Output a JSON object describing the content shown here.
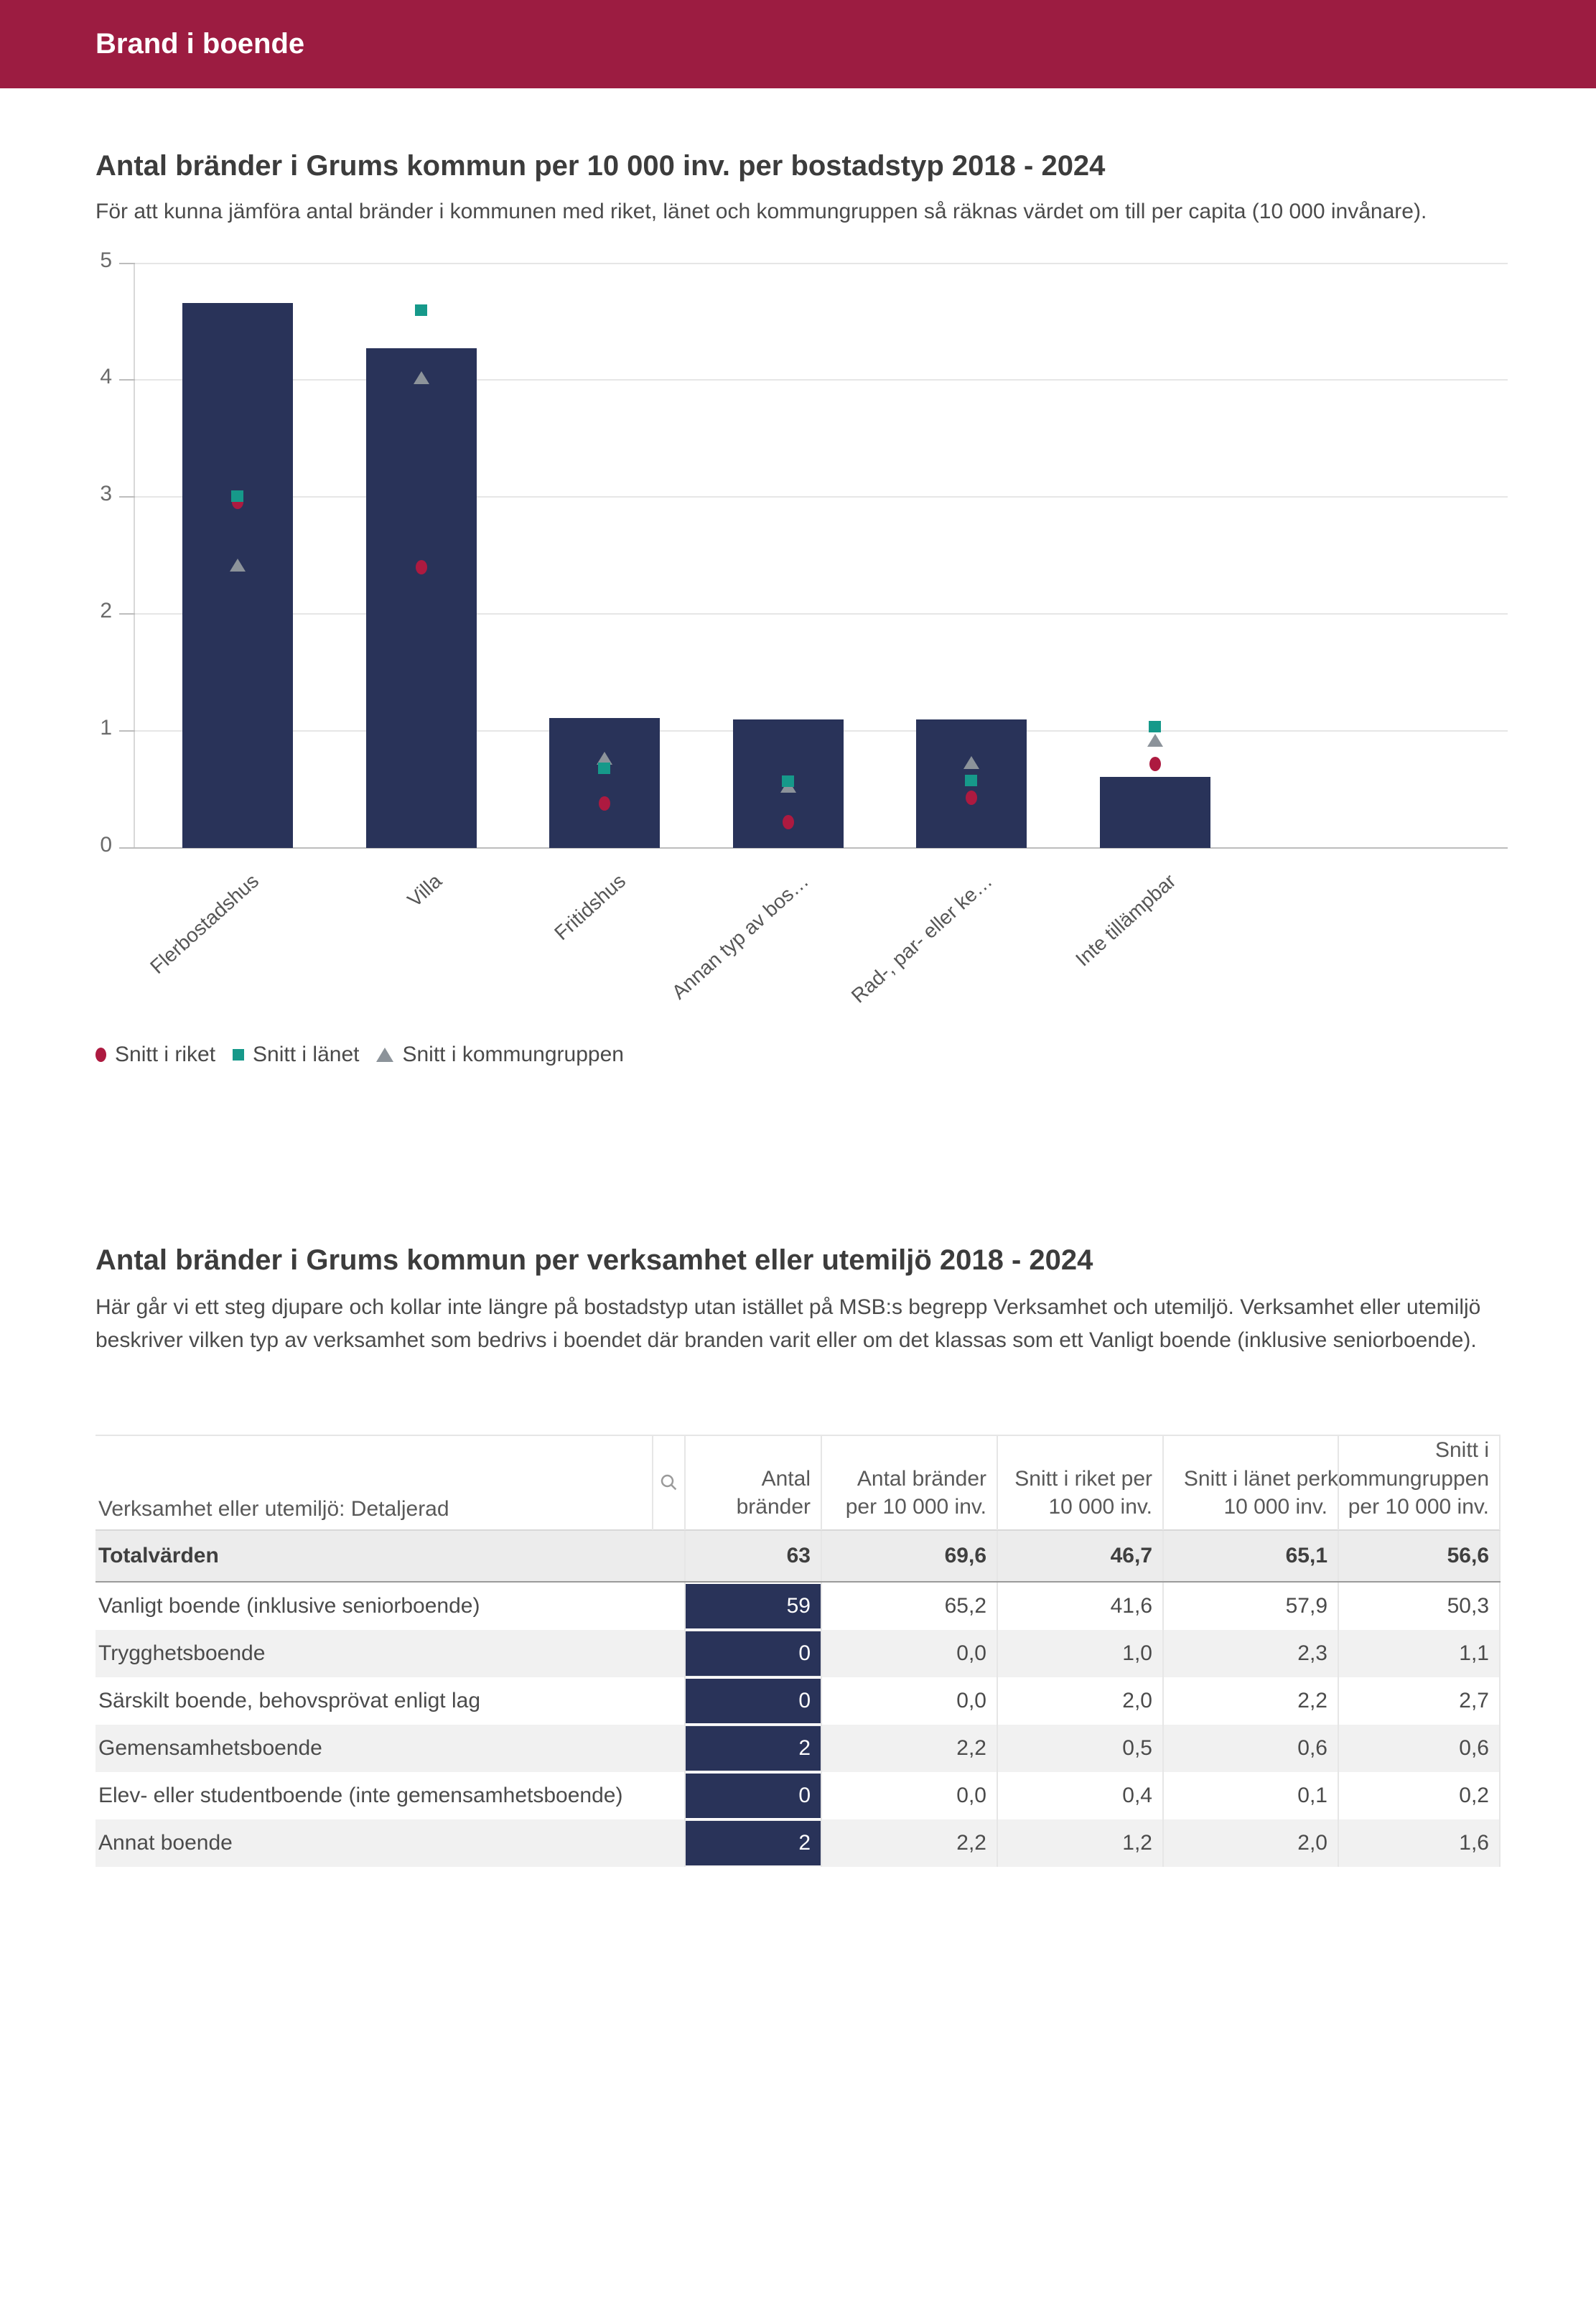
{
  "header": {
    "title": "Brand i boende"
  },
  "section1": {
    "title": "Antal bränder i Grums kommun per 10 000 inv. per bostadstyp 2018 - 2024",
    "subtitle": "För att kunna jämföra antal bränder i kommunen med riket, länet och kommungruppen så räknas värdet om till per capita (10 000 invånare)."
  },
  "chart_data": {
    "type": "bar",
    "title": "Antal bränder i Grums kommun per 10 000 inv. per bostadstyp 2018 - 2024",
    "categories": [
      "Flerbostadshus",
      "Villa",
      "Fritidshus",
      "Annan typ av bos…",
      "Rad-, par- eller ke…",
      "Inte tillämpbar"
    ],
    "bars": {
      "color": "#293359",
      "values": [
        4.66,
        4.27,
        1.11,
        1.1,
        1.1,
        0.61
      ]
    },
    "marker_series": [
      {
        "name": "Snitt i riket",
        "shape": "circle",
        "color": "#AD1A40",
        "values": [
          2.96,
          2.4,
          0.38,
          0.22,
          0.43,
          0.72
        ]
      },
      {
        "name": "Snitt i länet",
        "shape": "square",
        "color": "#16998A",
        "values": [
          3.01,
          4.6,
          0.68,
          0.57,
          0.58,
          1.04
        ]
      },
      {
        "name": "Snitt i kommungruppen",
        "shape": "triangle",
        "color": "#8C939A",
        "values": [
          2.42,
          4.02,
          0.77,
          0.53,
          0.73,
          0.92
        ]
      }
    ],
    "ylim": [
      0,
      5
    ],
    "yticks": [
      0,
      1,
      2,
      3,
      4,
      5
    ],
    "grid": true,
    "legend_position": "bottom-left"
  },
  "section2": {
    "title": "Antal bränder i Grums kommun per verksamhet eller utemiljö 2018 - 2024",
    "body": "Här går vi ett steg djupare och kollar inte längre på bostadstyp utan istället på MSB:s begrepp Verksamhet och utemiljö. Verksamhet eller utemiljö beskriver vilken typ av verksamhet som bedrivs i boendet där branden varit eller om det klassas som ett Vanligt boende (inklusive seniorboende)."
  },
  "table": {
    "search_icon": "magnifier-icon",
    "columns": [
      "Verksamhet eller utemiljö: Detaljerad",
      "Antal bränder",
      "Antal bränder per 10 000 inv.",
      "Snitt i riket per 10 000 inv.",
      "Snitt i länet per 10 000 inv.",
      "Snitt i kommungruppen per 10 000 inv."
    ],
    "total_row": {
      "label": "Totalvärden",
      "values": [
        "63",
        "69,6",
        "46,7",
        "65,1",
        "56,6"
      ]
    },
    "rows": [
      {
        "label": "Vanligt boende (inklusive seniorboende)",
        "values": [
          "59",
          "65,2",
          "41,6",
          "57,9",
          "50,3"
        ]
      },
      {
        "label": "Trygghetsboende",
        "values": [
          "0",
          "0,0",
          "1,0",
          "2,3",
          "1,1"
        ]
      },
      {
        "label": "Särskilt boende, behovsprövat enligt lag",
        "values": [
          "0",
          "0,0",
          "2,0",
          "2,2",
          "2,7"
        ]
      },
      {
        "label": "Gemensamhetsboende",
        "values": [
          "2",
          "2,2",
          "0,5",
          "0,6",
          "0,6"
        ]
      },
      {
        "label": "Elev- eller studentboende (inte gemensamhetsboende)",
        "values": [
          "0",
          "0,0",
          "0,4",
          "0,1",
          "0,2"
        ]
      },
      {
        "label": "Annat boende",
        "values": [
          "2",
          "2,2",
          "1,2",
          "2,0",
          "1,6"
        ]
      }
    ]
  },
  "colors": {
    "header_bar": "#9C1C41",
    "bar_navy": "#293359",
    "riket_red": "#AD1A40",
    "lanet_teal": "#16998A",
    "kommungrupp_gray": "#8C939A",
    "total_row_bg": "#ECECEC",
    "zebra_row_bg": "#F1F1F1"
  }
}
